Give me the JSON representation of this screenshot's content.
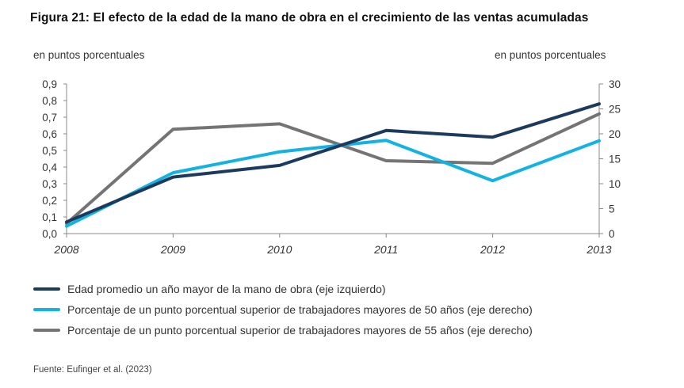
{
  "title": "Figura 21: El efecto de la edad de la mano de obra en el crecimiento de las ventas acumuladas",
  "source": "Fuente: Eufinger et al. (2023)",
  "chart_data": {
    "type": "line",
    "x": [
      "2008",
      "2009",
      "2010",
      "2011",
      "2012",
      "2013"
    ],
    "left_axis": {
      "label": "en puntos porcentuales",
      "ylim": [
        0,
        0.9
      ],
      "ticks": [
        "0,0",
        "0,1",
        "0,2",
        "0,3",
        "0,4",
        "0,5",
        "0,6",
        "0,7",
        "0,8",
        "0,9"
      ]
    },
    "right_axis": {
      "label": "en puntos porcentuales",
      "ylim": [
        0,
        30
      ],
      "ticks": [
        "0",
        "5",
        "10",
        "15",
        "20",
        "25",
        "30"
      ]
    },
    "grid": false,
    "legend_position": "bottom",
    "series": [
      {
        "name": "Edad promedio un año mayor de la mano de obra (eje izquierdo)",
        "axis": "left",
        "color": "#1b3a5e",
        "values": [
          0.07,
          0.34,
          0.41,
          0.62,
          0.58,
          0.78
        ]
      },
      {
        "name": "Porcentaje de un punto porcentual superior de trabajadores mayores de 50 años (eje derecho)",
        "axis": "right",
        "color": "#12b2e2",
        "values": [
          1.5,
          12.2,
          16.4,
          18.7,
          10.6,
          18.6
        ]
      },
      {
        "name": "Porcentaje de un punto porcentual superior de trabajadores mayores de 55 años (eje derecho)",
        "axis": "right",
        "color": "#747474",
        "values": [
          2.0,
          20.9,
          22.0,
          14.6,
          14.1,
          24.0
        ]
      }
    ]
  }
}
